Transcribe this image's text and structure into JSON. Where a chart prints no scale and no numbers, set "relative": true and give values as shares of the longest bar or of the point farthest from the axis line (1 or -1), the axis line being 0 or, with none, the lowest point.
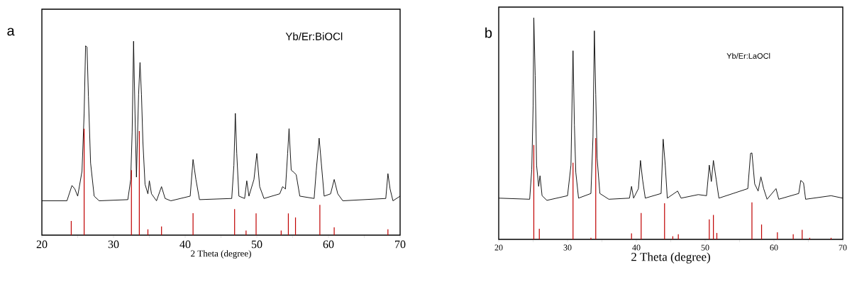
{
  "chart_data": [
    {
      "type": "line",
      "title": "a",
      "xlabel": "2 Theta (degree)",
      "relative": true,
      "annotations": [
        "Yb/Er:BiOCl"
      ],
      "xlim": [
        20,
        70
      ],
      "xticks": [
        20,
        {
          "value": 25,
          "label": null
        },
        30,
        {
          "value": 35,
          "label": null
        },
        40,
        {
          "value": 45,
          "label": null
        },
        50,
        {
          "value": 55,
          "label": null
        },
        60,
        {
          "value": 65,
          "label": null
        },
        70
      ],
      "series": [
        {
          "color": "#000000",
          "x": [
            20.0,
            23.5,
            24.2,
            24.6,
            25.0,
            25.6,
            25.9,
            26.1,
            26.3,
            26.5,
            26.8,
            27.3,
            28.0,
            32.0,
            32.4,
            32.6,
            32.8,
            33.0,
            33.2,
            33.5,
            33.7,
            33.9,
            34.1,
            34.4,
            34.8,
            35.0,
            35.3,
            36.0,
            36.7,
            37.2,
            38.0,
            40.7,
            41.1,
            41.5,
            42.0,
            46.5,
            46.8,
            47.0,
            47.2,
            47.5,
            48.3,
            48.6,
            48.9,
            49.6,
            50.0,
            50.4,
            51.0,
            53.2,
            53.6,
            54.0,
            54.3,
            54.5,
            54.8,
            55.2,
            55.5,
            56.0,
            58.0,
            58.3,
            58.7,
            59.0,
            59.4,
            60.3,
            60.8,
            61.3,
            62.0,
            68.0,
            68.3,
            68.6,
            69.0,
            70.0
          ],
          "values": [
            0.177,
            0.177,
            0.256,
            0.238,
            0.201,
            0.329,
            0.628,
            0.976,
            0.97,
            0.713,
            0.372,
            0.201,
            0.177,
            0.183,
            0.287,
            0.53,
            1.0,
            0.628,
            0.299,
            0.726,
            0.89,
            0.726,
            0.482,
            0.262,
            0.213,
            0.28,
            0.213,
            0.177,
            0.25,
            0.189,
            0.177,
            0.201,
            0.39,
            0.287,
            0.183,
            0.189,
            0.36,
            0.628,
            0.421,
            0.201,
            0.189,
            0.28,
            0.201,
            0.287,
            0.421,
            0.25,
            0.189,
            0.213,
            0.25,
            0.238,
            0.421,
            0.549,
            0.335,
            0.323,
            0.311,
            0.201,
            0.189,
            0.335,
            0.5,
            0.372,
            0.201,
            0.213,
            0.287,
            0.213,
            0.177,
            0.189,
            0.317,
            0.238,
            0.177,
            0.201
          ]
        },
        {
          "type": "bar",
          "color": "#c00000",
          "x": [
            24.1,
            25.9,
            32.5,
            33.6,
            34.8,
            36.7,
            41.1,
            46.9,
            48.5,
            49.9,
            53.4,
            54.4,
            55.4,
            58.8,
            60.8,
            68.3
          ],
          "values": [
            0.073,
            0.549,
            0.335,
            0.537,
            0.03,
            0.045,
            0.113,
            0.134,
            0.024,
            0.112,
            0.024,
            0.112,
            0.091,
            0.156,
            0.04,
            0.03
          ]
        }
      ]
    },
    {
      "type": "line",
      "title": "b",
      "xlabel": "2 Theta (degree)",
      "relative": true,
      "annotations": [
        "Yb/Er:LaOCl"
      ],
      "xlim": [
        20,
        70
      ],
      "xticks": [
        20,
        {
          "value": 25,
          "label": null
        },
        30,
        {
          "value": 35,
          "label": null
        },
        40,
        {
          "value": 45,
          "label": null
        },
        50,
        {
          "value": 55,
          "label": null
        },
        60,
        {
          "value": 65,
          "label": null
        },
        70
      ],
      "series": [
        {
          "color": "#000000",
          "x": [
            20.0,
            24.5,
            24.8,
            25.0,
            25.1,
            25.3,
            25.5,
            25.8,
            26.0,
            26.3,
            27.0,
            30.0,
            30.5,
            30.7,
            30.8,
            31.0,
            31.2,
            31.6,
            33.4,
            33.7,
            33.9,
            34.1,
            34.3,
            34.7,
            36.0,
            39.0,
            39.3,
            39.6,
            40.3,
            40.6,
            40.9,
            41.3,
            43.6,
            43.9,
            44.2,
            44.5,
            46.0,
            46.5,
            49.0,
            50.2,
            50.6,
            50.9,
            51.2,
            51.6,
            52.0,
            56.2,
            56.6,
            56.8,
            57.2,
            57.7,
            58.1,
            58.5,
            59.0,
            60.3,
            60.7,
            63.6,
            63.9,
            64.3,
            64.6,
            68.3,
            70.0
          ],
          "values": [
            0.186,
            0.181,
            0.314,
            0.601,
            1.0,
            0.739,
            0.335,
            0.239,
            0.287,
            0.197,
            0.176,
            0.197,
            0.335,
            0.697,
            0.851,
            0.516,
            0.303,
            0.186,
            0.207,
            0.463,
            0.941,
            0.654,
            0.367,
            0.207,
            0.181,
            0.186,
            0.239,
            0.186,
            0.229,
            0.356,
            0.271,
            0.186,
            0.207,
            0.452,
            0.335,
            0.186,
            0.218,
            0.186,
            0.202,
            0.197,
            0.335,
            0.261,
            0.356,
            0.271,
            0.186,
            0.229,
            0.388,
            0.39,
            0.25,
            0.218,
            0.282,
            0.229,
            0.181,
            0.229,
            0.181,
            0.207,
            0.266,
            0.255,
            0.181,
            0.197,
            0.186
          ]
        },
        {
          "type": "bar",
          "color": "#c00000",
          "x": [
            25.1,
            25.9,
            30.8,
            33.4,
            34.1,
            39.3,
            40.7,
            44.1,
            45.3,
            46.1,
            50.6,
            51.2,
            51.7,
            56.8,
            58.2,
            60.5,
            62.8,
            64.1,
            65.2,
            68.3
          ],
          "values": [
            0.426,
            0.048,
            0.346,
            0.007,
            0.457,
            0.027,
            0.119,
            0.163,
            0.014,
            0.023,
            0.09,
            0.11,
            0.029,
            0.167,
            0.067,
            0.032,
            0.023,
            0.043,
            0.007,
            0.007
          ]
        }
      ]
    }
  ]
}
